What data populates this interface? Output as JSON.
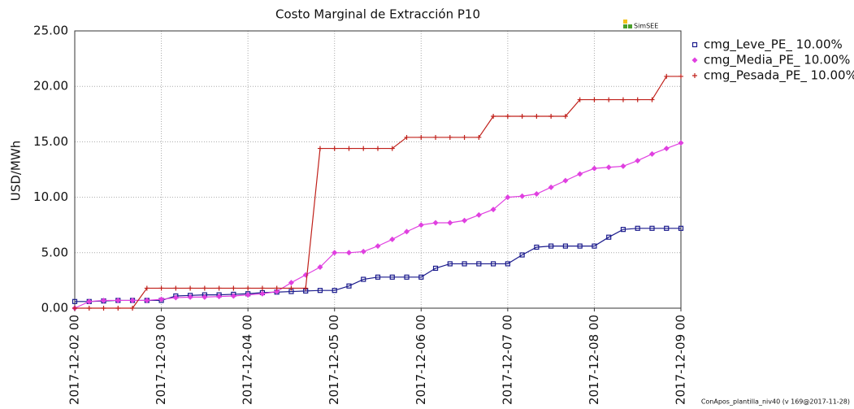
{
  "chart_data": {
    "type": "line",
    "title": "Costo Marginal de Extracción P10",
    "y_label": "USD/MWh",
    "logo": "SimSEE",
    "footer": "ConApos_plantilla_niv40 (v 169@2017-11-28)",
    "x": [
      "2017-12-02 00",
      "2017-12-02 04",
      "2017-12-02 08",
      "2017-12-02 12",
      "2017-12-02 16",
      "2017-12-02 20",
      "2017-12-03 00",
      "2017-12-03 04",
      "2017-12-03 08",
      "2017-12-03 12",
      "2017-12-03 16",
      "2017-12-03 20",
      "2017-12-04 00",
      "2017-12-04 04",
      "2017-12-04 08",
      "2017-12-04 12",
      "2017-12-04 16",
      "2017-12-04 20",
      "2017-12-05 00",
      "2017-12-05 04",
      "2017-12-05 08",
      "2017-12-05 12",
      "2017-12-05 16",
      "2017-12-05 20",
      "2017-12-06 00",
      "2017-12-06 04",
      "2017-12-06 08",
      "2017-12-06 12",
      "2017-12-06 16",
      "2017-12-06 20",
      "2017-12-07 00",
      "2017-12-07 04",
      "2017-12-07 08",
      "2017-12-07 12",
      "2017-12-07 16",
      "2017-12-07 20",
      "2017-12-08 00",
      "2017-12-08 04",
      "2017-12-08 08",
      "2017-12-08 12",
      "2017-12-08 16",
      "2017-12-08 20",
      "2017-12-09 00"
    ],
    "series": [
      {
        "name": "cmg_Leve_PE_ 10.00%",
        "color": "#1a1a8c",
        "marker": "square",
        "values": [
          0.6,
          0.6,
          0.65,
          0.7,
          0.7,
          0.7,
          0.7,
          1.1,
          1.15,
          1.2,
          1.2,
          1.25,
          1.3,
          1.4,
          1.45,
          1.5,
          1.55,
          1.6,
          1.6,
          2.0,
          2.6,
          2.8,
          2.8,
          2.8,
          2.8,
          3.6,
          4.0,
          4.0,
          4.0,
          4.0,
          4.0,
          4.8,
          5.5,
          5.6,
          5.6,
          5.6,
          5.6,
          6.4,
          7.1,
          7.2,
          7.2,
          7.2,
          7.2
        ]
      },
      {
        "name": "cmg_Media_PE_ 10.00%",
        "color": "#e040e0",
        "marker": "diamond",
        "values": [
          0,
          0.6,
          0.7,
          0.7,
          0.7,
          0.7,
          0.8,
          0.95,
          1.0,
          1.0,
          1.05,
          1.1,
          1.2,
          1.3,
          1.5,
          2.3,
          3.0,
          3.7,
          5.0,
          5.0,
          5.1,
          5.6,
          6.2,
          6.9,
          7.5,
          7.7,
          7.7,
          7.9,
          8.4,
          8.9,
          10.0,
          10.1,
          10.3,
          10.9,
          11.5,
          12.1,
          12.6,
          12.7,
          12.8,
          13.3,
          13.9,
          14.4,
          14.9
        ]
      },
      {
        "name": "cmg_Pesada_PE_ 10.00%",
        "color": "#c0201a",
        "marker": "plus",
        "values": [
          0,
          0,
          0,
          0,
          0,
          1.8,
          1.8,
          1.8,
          1.8,
          1.8,
          1.8,
          1.8,
          1.8,
          1.8,
          1.8,
          1.8,
          1.8,
          14.4,
          14.4,
          14.4,
          14.4,
          14.4,
          14.4,
          15.4,
          15.4,
          15.4,
          15.4,
          15.4,
          15.4,
          17.3,
          17.3,
          17.3,
          17.3,
          17.3,
          17.3,
          18.8,
          18.8,
          18.8,
          18.8,
          18.8,
          18.8,
          20.9,
          20.9
        ]
      }
    ],
    "xticks": [
      "2017-12-02 00",
      "2017-12-03 00",
      "2017-12-04 00",
      "2017-12-05 00",
      "2017-12-06 00",
      "2017-12-07 00",
      "2017-12-08 00",
      "2017-12-09 00"
    ],
    "ylim": [
      0,
      25
    ],
    "yticks": [
      {
        "value": 0,
        "label": "0.00"
      },
      {
        "value": 5,
        "label": "5.00"
      },
      {
        "value": 10,
        "label": "10.00"
      },
      {
        "value": 15,
        "label": "15.00"
      },
      {
        "value": 20,
        "label": "20.00"
      },
      {
        "value": 25,
        "label": "25.00"
      }
    ],
    "grid": true,
    "legend": "right"
  }
}
